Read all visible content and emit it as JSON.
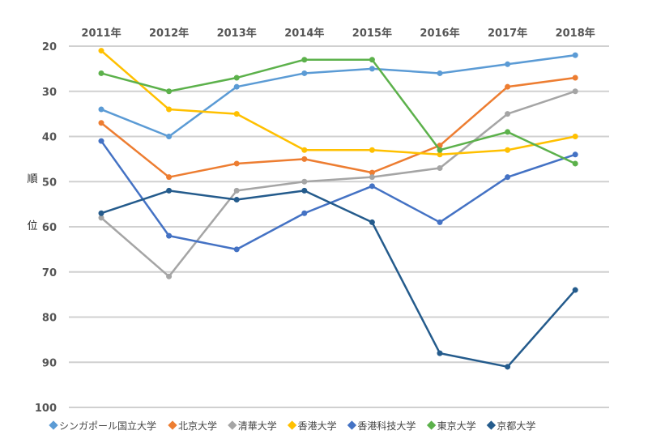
{
  "chart_data": {
    "type": "line",
    "title": "",
    "xlabel": "",
    "ylabel": "順位",
    "categories": [
      "2011年",
      "2012年",
      "2013年",
      "2014年",
      "2015年",
      "2016年",
      "2017年",
      "2018年"
    ],
    "yticks": [
      "20",
      "30",
      "40",
      "50",
      "60",
      "70",
      "80",
      "90",
      "100"
    ],
    "ylim": [
      100,
      20
    ],
    "y_inverted": true,
    "grid": true,
    "legend_position": "bottom",
    "x_axis_position": "top",
    "series": [
      {
        "name": "シンガポール国立大学",
        "color": "#5B9BD5",
        "values": [
          34,
          40,
          29,
          26,
          25,
          26,
          24,
          22
        ]
      },
      {
        "name": "北京大学",
        "color": "#ED7D31",
        "values": [
          37,
          49,
          46,
          45,
          48,
          42,
          29,
          27
        ]
      },
      {
        "name": "清華大学",
        "color": "#A5A5A5",
        "values": [
          58,
          71,
          52,
          50,
          49,
          47,
          35,
          30
        ]
      },
      {
        "name": "香港大学",
        "color": "#FFC000",
        "values": [
          21,
          34,
          35,
          43,
          43,
          44,
          43,
          40
        ]
      },
      {
        "name": "香港科技大学",
        "color": "#4472C4",
        "values": [
          41,
          62,
          65,
          57,
          51,
          59,
          49,
          44
        ]
      },
      {
        "name": "東京大学",
        "color": "#5CB14B",
        "values": [
          26,
          30,
          27,
          23,
          23,
          43,
          39,
          46
        ]
      },
      {
        "name": "京都大学",
        "color": "#245B8C",
        "values": [
          57,
          52,
          54,
          52,
          59,
          88,
          91,
          74
        ]
      }
    ]
  }
}
